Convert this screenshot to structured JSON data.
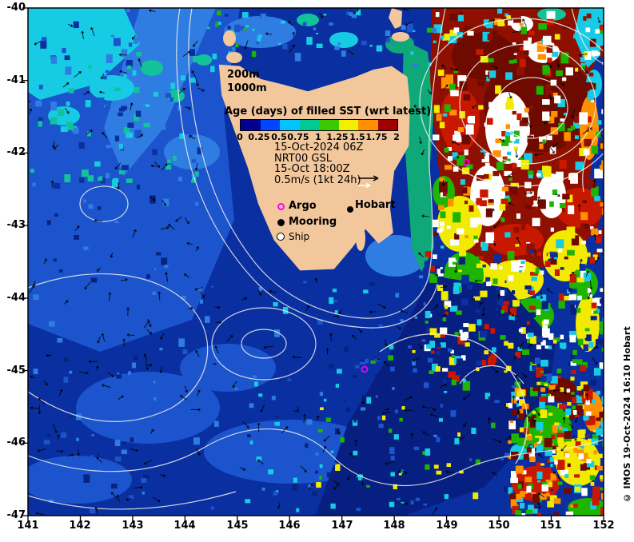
{
  "legend": {
    "contour_labels": [
      "200m",
      "1000m"
    ],
    "colorbar_title": "Age (days) of filled SST (wrt latest)",
    "colorbar_ticks": [
      "0",
      "0.25",
      "0.5",
      "0.75",
      "1",
      "1.25",
      "1.5",
      "1.75",
      "2"
    ],
    "colorbar_colors": [
      "#000091",
      "#0045ff",
      "#00c3ff",
      "#00c993",
      "#3ec800",
      "#f2ef00",
      "#ff9000",
      "#a00000"
    ],
    "info_lines": [
      "15-Oct-2024 06Z",
      "NRT00 GSL",
      "15-Oct 18:00Z",
      "0.5m/s (1kt 24h)"
    ],
    "markers": [
      {
        "label": "Argo",
        "color": "#ff00ff"
      },
      {
        "label": "Mooring",
        "color": "#000000"
      },
      {
        "label": "Ship",
        "color": "#ffffff"
      }
    ]
  },
  "map": {
    "city_label": "Hobart",
    "land_color": "#f2c79c",
    "ocean_base_color": "#0a2fa0",
    "contour_color": "#ffffff",
    "vector_color": "#000000",
    "argo_marker_color": "#ff00ff"
  },
  "axes": {
    "x_ticks": [
      "141",
      "142",
      "143",
      "144",
      "145",
      "146",
      "147",
      "148",
      "149",
      "150",
      "151",
      "152"
    ],
    "y_ticks": [
      "-40",
      "-41",
      "-42",
      "-43",
      "-44",
      "-45",
      "-46",
      "-47"
    ]
  },
  "copyright": "© IMOS 19-Oct-2024 16:10 Hobart"
}
